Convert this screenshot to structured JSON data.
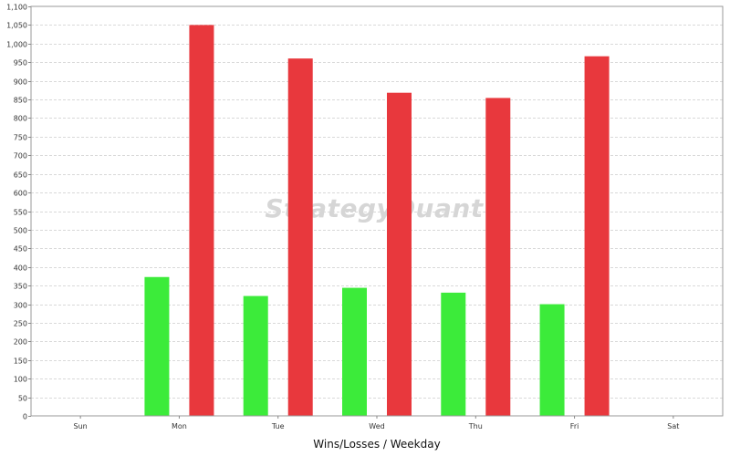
{
  "chart_data": {
    "type": "bar",
    "xlabel": "Wins/Losses / Weekday",
    "ylabel": "",
    "ylim": [
      0,
      1100
    ],
    "yticks": [
      0,
      50,
      100,
      150,
      200,
      250,
      300,
      350,
      400,
      450,
      500,
      550,
      600,
      650,
      700,
      750,
      800,
      850,
      900,
      950,
      1000,
      1050,
      1100
    ],
    "ytick_labels": [
      "0",
      "50",
      "100",
      "150",
      "200",
      "250",
      "300",
      "350",
      "400",
      "450",
      "500",
      "550",
      "600",
      "650",
      "700",
      "750",
      "800",
      "850",
      "900",
      "950",
      "1,000",
      "1,050",
      "1,100"
    ],
    "grid": true,
    "categories": [
      "Sun",
      "Mon",
      "Tue",
      "Wed",
      "Thu",
      "Fri",
      "Sat"
    ],
    "series": [
      {
        "values": [
          0,
          373,
          322,
          344,
          331,
          300,
          0
        ],
        "color": "#3ceb3a"
      },
      {
        "values": [
          0,
          1050,
          960,
          868,
          854,
          966,
          0
        ],
        "color": "#e8383d"
      }
    ],
    "watermark": "StrategyQuant"
  }
}
